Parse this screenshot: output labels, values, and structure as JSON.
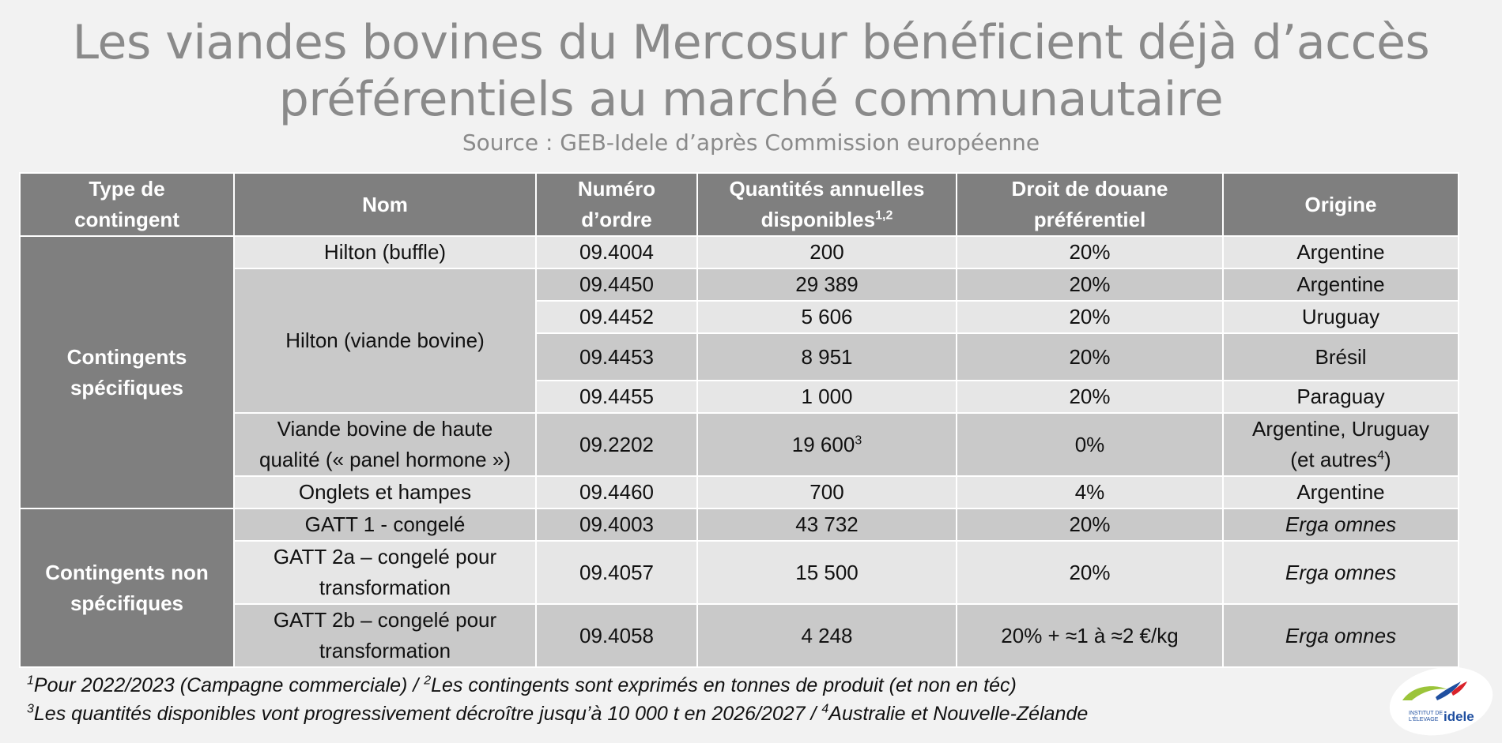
{
  "title": {
    "line1": "Les viandes bovines du Mercosur bénéficient déjà d’accès",
    "line2": "préférentiels au marché communautaire"
  },
  "source": "Source : GEB-Idele d’après Commission européenne",
  "headers": {
    "type_line1": "Type de",
    "type_line2": "contingent",
    "nom": "Nom",
    "numero_line1": "Numéro",
    "numero_line2": "d’ordre",
    "quantites_line1": "Quantités annuelles",
    "quantites_line2": "disponibles",
    "quantites_sup": "1,2",
    "droit_line1": "Droit de douane",
    "droit_line2": "préférentiel",
    "origine": "Origine"
  },
  "groups": {
    "specific_line1": "Contingents",
    "specific_line2": "spécifiques",
    "nonspecific_line1": "Contingents non",
    "nonspecific_line2": "spécifiques"
  },
  "names": {
    "hilton_buffle": "Hilton (buffle)",
    "hilton_bovine": "Hilton (viande bovine)",
    "haute_qualite_line1": "Viande bovine de haute",
    "haute_qualite_line2": "qualité (« panel hormone »)",
    "onglets": "Onglets et hampes",
    "gatt1": "GATT 1 - congelé",
    "gatt2a_line1": "GATT 2a – congelé pour",
    "gatt2a_line2": "transformation",
    "gatt2b_line1": "GATT 2b – congelé pour",
    "gatt2b_line2": "transformation"
  },
  "rows": [
    {
      "numero": "09.4004",
      "quantite": "200",
      "quantite_sup": "",
      "droit": "20%",
      "origine": "Argentine"
    },
    {
      "numero": "09.4450",
      "quantite": "29 389",
      "quantite_sup": "",
      "droit": "20%",
      "origine": "Argentine"
    },
    {
      "numero": "09.4452",
      "quantite": "5 606",
      "quantite_sup": "",
      "droit": "20%",
      "origine": "Uruguay"
    },
    {
      "numero": "09.4453",
      "quantite": "8 951",
      "quantite_sup": "",
      "droit": "20%",
      "origine": "Brésil"
    },
    {
      "numero": "09.4455",
      "quantite": "1 000",
      "quantite_sup": "",
      "droit": "20%",
      "origine": "Paraguay"
    },
    {
      "numero": "09.2202",
      "quantite": "19 600",
      "quantite_sup": "3",
      "droit": "0%",
      "origine_line1": "Argentine, Uruguay",
      "origine_line2": "(et autres",
      "origine_sup": "4",
      "origine_line2_end": ")"
    },
    {
      "numero": "09.4460",
      "quantite": "700",
      "quantite_sup": "",
      "droit": "4%",
      "origine": "Argentine"
    },
    {
      "numero": "09.4003",
      "quantite": "43 732",
      "quantite_sup": "",
      "droit": "20%",
      "origine": "Erga omnes"
    },
    {
      "numero": "09.4057",
      "quantite": "15 500",
      "quantite_sup": "",
      "droit": "20%",
      "origine": "Erga omnes"
    },
    {
      "numero": "09.4058",
      "quantite": "4 248",
      "quantite_sup": "",
      "droit": "20% + ≈1 à ≈2 €/kg",
      "origine": "Erga omnes"
    }
  ],
  "footnotes": {
    "n1_sup": "1",
    "n1": "Pour 2022/2023 (Campagne commerciale) / ",
    "n2_sup": "2",
    "n2": "Les contingents sont exprimés en tonnes de produit (et non en téc)",
    "n3_sup": "3",
    "n3": "Les quantités disponibles vont progressivement décroître jusqu’à 10 000 t en 2026/2027 / ",
    "n4_sup": "4",
    "n4": "Australie et Nouvelle-Zélande"
  },
  "logo": {
    "text_line1": "INSTITUT DE",
    "text_line2": "L'ÉLEVAGE",
    "brand": "idele",
    "colors": {
      "green": "#9bc43a",
      "blue": "#1f4fa0",
      "red": "#d9222a"
    }
  }
}
